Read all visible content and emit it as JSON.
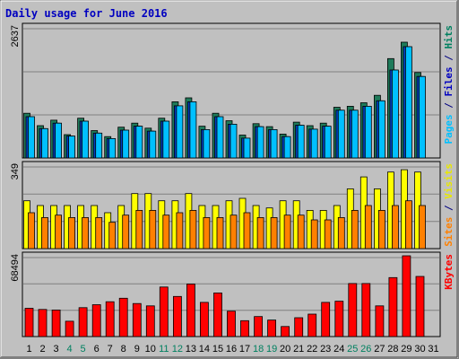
{
  "chart_data": {
    "type": "bar",
    "title": "Daily usage for June 2016",
    "title_color": "#0000c0",
    "days": [
      "1",
      "2",
      "3",
      "4",
      "5",
      "6",
      "7",
      "8",
      "9",
      "10",
      "11",
      "12",
      "13",
      "14",
      "15",
      "16",
      "17",
      "18",
      "19",
      "20",
      "21",
      "22",
      "23",
      "24",
      "25",
      "26",
      "27",
      "28",
      "29",
      "30",
      "31"
    ],
    "weekend_days": [
      "4",
      "5",
      "11",
      "12",
      "18",
      "19",
      "25",
      "26"
    ],
    "day_color": "#000000",
    "weekend_color": "#008060",
    "panels": [
      {
        "id": "hits",
        "tick_label": "2637",
        "ylim": [
          0,
          2637
        ],
        "side_labels": [
          {
            "text": "Pages",
            "color": "#00c0ff"
          },
          {
            "text": " / ",
            "color": "#000080"
          },
          {
            "text": "Files",
            "color": "#0000c0"
          },
          {
            "text": " / ",
            "color": "#000080"
          },
          {
            "text": "Hits",
            "color": "#008060"
          }
        ],
        "series": [
          {
            "key": "Hits",
            "color": "#1f7a5a",
            "values": [
              900,
              650,
              760,
              470,
              800,
              550,
              430,
              620,
              700,
              600,
              800,
              1130,
              1210,
              640,
              900,
              750,
              460,
              690,
              630,
              480,
              720,
              650,
              700,
              1020,
              1040,
              1110,
              1260,
              2000,
              2330,
              1720,
              null
            ]
          },
          {
            "key": "Files",
            "color": "#0040c0",
            "values": [
              830,
              590,
              700,
              440,
              740,
              500,
              390,
              560,
              640,
              540,
              740,
              1050,
              1130,
              570,
              830,
              680,
              400,
              630,
              570,
              430,
              660,
              580,
              640,
              960,
              960,
              1040,
              1150,
              1770,
              2240,
              1640,
              null
            ]
          },
          {
            "key": "Pages",
            "color": "#00c0ff",
            "values": [
              830,
              590,
              700,
              440,
              740,
              500,
              390,
              560,
              640,
              540,
              740,
              1050,
              1130,
              570,
              830,
              680,
              400,
              630,
              570,
              430,
              660,
              580,
              640,
              960,
              960,
              1040,
              1150,
              1770,
              2240,
              1640,
              null
            ]
          }
        ]
      },
      {
        "id": "visits",
        "tick_label": "349",
        "ylim": [
          0,
          349
        ],
        "side_labels": [
          {
            "text": "Sites",
            "color": "#ff8000"
          },
          {
            "text": " / ",
            "color": "#000080"
          },
          {
            "text": "Visits",
            "color": "#e8e800"
          }
        ],
        "series": [
          {
            "key": "Visits",
            "color": "#ffff00",
            "values": [
              200,
              180,
              180,
              180,
              180,
              180,
              150,
              180,
              230,
              230,
              200,
              200,
              230,
              180,
              180,
              200,
              210,
              180,
              170,
              200,
              200,
              160,
              160,
              180,
              250,
              300,
              250,
              320,
              330,
              320,
              null
            ]
          },
          {
            "key": "Sites",
            "color": "#ff8000",
            "values": [
              150,
              130,
              140,
              130,
              130,
              130,
              110,
              140,
              160,
              160,
              140,
              150,
              160,
              130,
              130,
              140,
              150,
              130,
              130,
              140,
              140,
              120,
              120,
              130,
              160,
              180,
              160,
              180,
              200,
              180,
              null
            ]
          }
        ]
      },
      {
        "id": "kbytes",
        "tick_label": "68494",
        "ylim": [
          0,
          68494
        ],
        "side_labels": [
          {
            "text": "KBytes",
            "color": "#ff0000"
          }
        ],
        "series": [
          {
            "key": "KBytes",
            "color": "#ff0000",
            "values": [
              24000,
              23000,
              22500,
              13000,
              24500,
              27000,
              29500,
              32500,
              28000,
              26000,
              42000,
              34000,
              44500,
              29000,
              37000,
              21500,
              13500,
              17000,
              14000,
              8500,
              16000,
              19000,
              29000,
              30000,
              45000,
              45000,
              26000,
              50000,
              68494,
              51000,
              null
            ]
          }
        ]
      }
    ]
  }
}
